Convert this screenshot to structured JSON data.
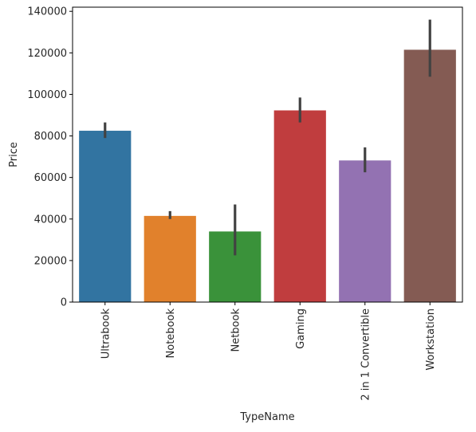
{
  "chart_data": {
    "type": "bar",
    "categories": [
      "Ultrabook",
      "Notebook",
      "Netbook",
      "Gaming",
      "2 in 1 Convertible",
      "Workstation"
    ],
    "values": [
      82500,
      41500,
      34000,
      92300,
      68200,
      121500
    ],
    "error_bars": [
      [
        79000,
        86500
      ],
      [
        40000,
        43800
      ],
      [
        22500,
        47000
      ],
      [
        86500,
        98500
      ],
      [
        62500,
        74500
      ],
      [
        108500,
        136000
      ]
    ],
    "colors": [
      "#3274a1",
      "#e1812c",
      "#3a923a",
      "#c03d3e",
      "#9372b2",
      "#845b53"
    ],
    "xlabel": "TypeName",
    "ylabel": "Price",
    "ylim": [
      0,
      142000
    ],
    "yticks": [
      0,
      20000,
      40000,
      60000,
      80000,
      100000,
      120000,
      140000
    ],
    "ytick_labels": [
      "0",
      "20000",
      "40000",
      "60000",
      "80000",
      "100000",
      "120000",
      "140000"
    ],
    "grid": false,
    "errorbar_color": "#424242"
  }
}
